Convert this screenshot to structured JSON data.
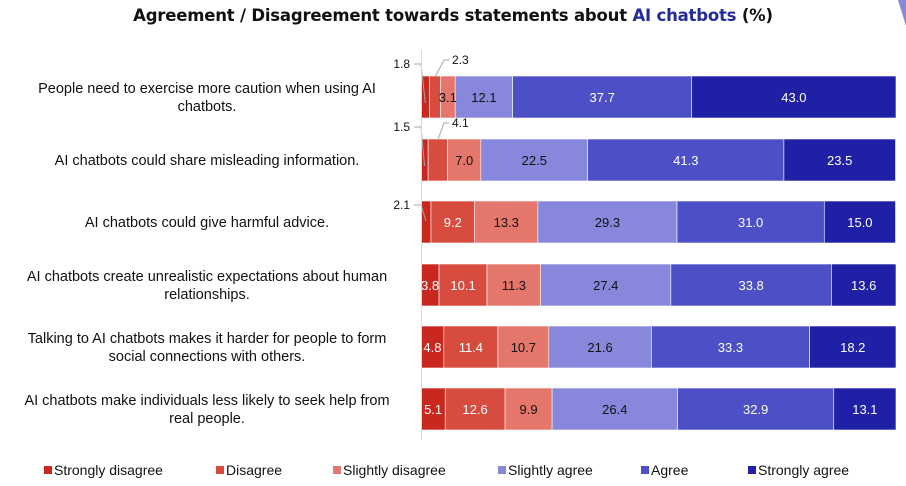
{
  "chart_data": {
    "type": "bar",
    "orientation": "horizontal",
    "stacked": true,
    "title": {
      "prefix": "Agreement / Disagreement towards statements about ",
      "highlight": "AI chatbots",
      "suffix": " (%)"
    },
    "xlabel": "",
    "ylabel": "",
    "xlim": [
      0,
      100
    ],
    "grid": false,
    "legend_position": "bottom",
    "categories": [
      [
        "People need to exercise more caution when using AI",
        "chatbots."
      ],
      [
        "AI chatbots could share misleading information."
      ],
      [
        "AI chatbots could give harmful advice."
      ],
      [
        "AI chatbots create unrealistic expectations about human",
        "relationships."
      ],
      [
        "Talking to AI chatbots makes it harder for people to form",
        "social connections with others."
      ],
      [
        "AI chatbots make individuals less likely to seek help from",
        "real people."
      ]
    ],
    "series": [
      {
        "name": "Strongly disagree",
        "color": "#c8281e",
        "label_color": "#ffffff",
        "values": [
          1.8,
          1.5,
          2.1,
          3.8,
          4.8,
          5.1
        ]
      },
      {
        "name": "Disagree",
        "color": "#d84b3f",
        "label_color": "#ffffff",
        "values": [
          2.3,
          4.1,
          9.2,
          10.1,
          11.4,
          12.6
        ]
      },
      {
        "name": "Slightly disagree",
        "color": "#e4766b",
        "label_color": "#111111",
        "values": [
          3.1,
          7.0,
          13.3,
          11.3,
          10.7,
          9.9
        ]
      },
      {
        "name": "Slightly agree",
        "color": "#8788dc",
        "label_color": "#111111",
        "values": [
          12.1,
          22.5,
          29.3,
          27.4,
          21.6,
          26.4
        ]
      },
      {
        "name": "Agree",
        "color": "#4c4fc6",
        "label_color": "#ffffff",
        "values": [
          37.7,
          41.3,
          31.0,
          33.8,
          33.3,
          32.9
        ]
      },
      {
        "name": "Strongly agree",
        "color": "#2020a6",
        "label_color": "#ffffff",
        "values": [
          43.0,
          23.5,
          15.0,
          13.6,
          18.2,
          13.1
        ]
      }
    ],
    "callouts": [
      {
        "row": 0,
        "series": 0,
        "text": "1.8"
      },
      {
        "row": 0,
        "series": 1,
        "text": "2.3"
      },
      {
        "row": 1,
        "series": 0,
        "text": "1.5"
      },
      {
        "row": 1,
        "series": 1,
        "text": "4.1"
      },
      {
        "row": 2,
        "series": 0,
        "text": "2.1"
      }
    ]
  }
}
